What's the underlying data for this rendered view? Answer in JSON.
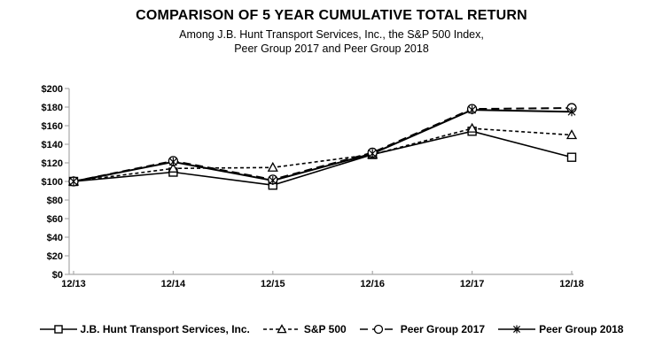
{
  "chart_data": {
    "type": "line",
    "title": "COMPARISON OF 5 YEAR CUMULATIVE TOTAL RETURN",
    "subtitle_line1": "Among J.B. Hunt Transport Services, Inc., the S&P 500 Index,",
    "subtitle_line2": "Peer Group 2017 and Peer Group 2018",
    "categories": [
      "12/13",
      "12/14",
      "12/15",
      "12/16",
      "12/17",
      "12/18"
    ],
    "series": [
      {
        "name": "J.B. Hunt Transport Services, Inc.",
        "values": [
          100,
          110,
          96,
          129,
          154,
          126
        ],
        "marker": "square",
        "dash": "solid"
      },
      {
        "name": "S&P 500",
        "values": [
          100,
          114,
          115,
          129,
          157,
          150
        ],
        "marker": "triangle",
        "dash": "dashed"
      },
      {
        "name": "Peer Group 2017",
        "values": [
          100,
          122,
          102,
          131,
          178,
          179
        ],
        "marker": "circle",
        "dash": "longdash"
      },
      {
        "name": "Peer Group 2018",
        "values": [
          100,
          121,
          101,
          130,
          177,
          175
        ],
        "marker": "star",
        "dash": "solid"
      }
    ],
    "ylim": [
      0,
      200
    ],
    "ytick_step": 20,
    "ytick_prefix": "$",
    "xlabel": "",
    "ylabel": "",
    "grid": false,
    "legend_position": "bottom",
    "line_color": "#000000",
    "axis_color": "#a9a9a9",
    "marker_fill": "#ffffff",
    "background": "#ffffff"
  }
}
